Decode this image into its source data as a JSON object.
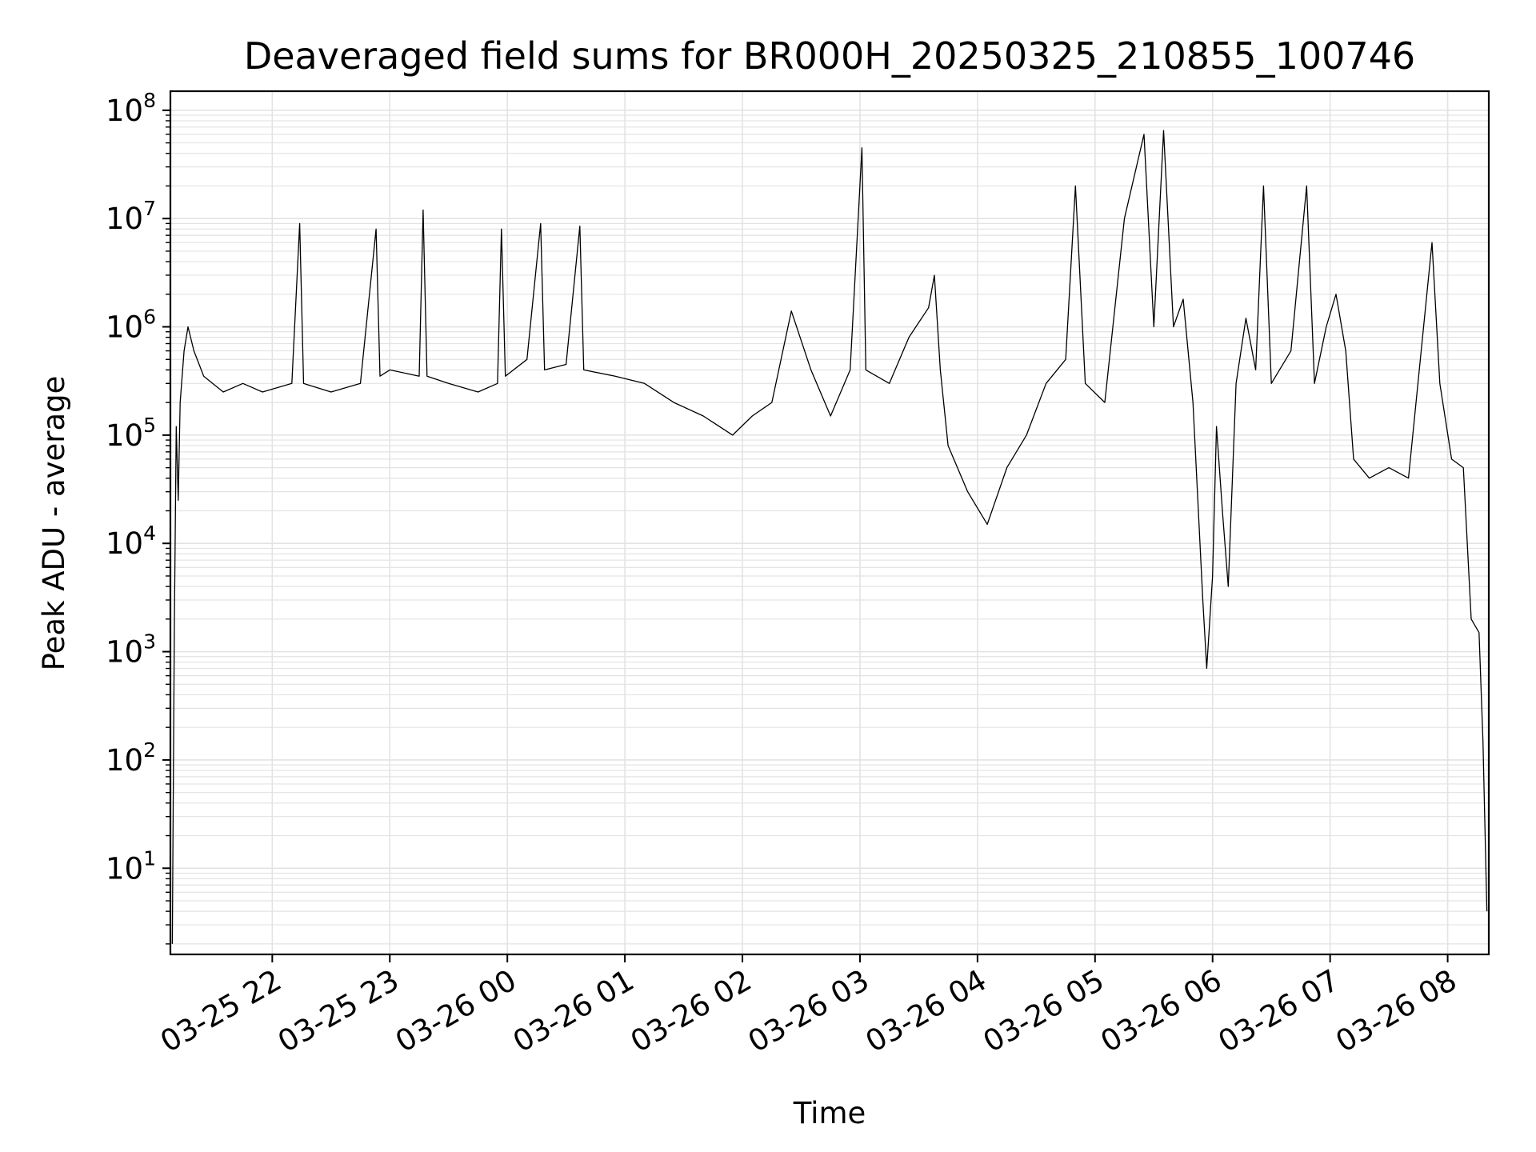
{
  "chart_data": {
    "type": "line",
    "title": "Deaveraged field sums for BR000H_20250325_210855_100746",
    "xlabel": "Time",
    "ylabel": "Peak ADU - average",
    "y_scale": "log",
    "ylim": [
      1.6,
      150000000
    ],
    "xlim": [
      "2025-03-25 21:08",
      "2025-03-26 08:21"
    ],
    "grid": true,
    "colors": {
      "line": "#000000",
      "grid": "#e3e3e3",
      "axes": "#000000"
    },
    "x_ticks": [
      {
        "label": "03-25 22",
        "t": "2025-03-25 22:00"
      },
      {
        "label": "03-25 23",
        "t": "2025-03-25 23:00"
      },
      {
        "label": "03-26 00",
        "t": "2025-03-26 00:00"
      },
      {
        "label": "03-26 01",
        "t": "2025-03-26 01:00"
      },
      {
        "label": "03-26 02",
        "t": "2025-03-26 02:00"
      },
      {
        "label": "03-26 03",
        "t": "2025-03-26 03:00"
      },
      {
        "label": "03-26 04",
        "t": "2025-03-26 04:00"
      },
      {
        "label": "03-26 05",
        "t": "2025-03-26 05:00"
      },
      {
        "label": "03-26 06",
        "t": "2025-03-26 06:00"
      },
      {
        "label": "03-26 07",
        "t": "2025-03-26 07:00"
      },
      {
        "label": "03-26 08",
        "t": "2025-03-26 08:00"
      }
    ],
    "y_ticks": [
      {
        "base": "10",
        "exp": "1",
        "value": 10
      },
      {
        "base": "10",
        "exp": "2",
        "value": 100
      },
      {
        "base": "10",
        "exp": "3",
        "value": 1000
      },
      {
        "base": "10",
        "exp": "4",
        "value": 10000
      },
      {
        "base": "10",
        "exp": "5",
        "value": 100000
      },
      {
        "base": "10",
        "exp": "6",
        "value": 1000000
      },
      {
        "base": "10",
        "exp": "7",
        "value": 10000000
      },
      {
        "base": "10",
        "exp": "8",
        "value": 100000000
      }
    ],
    "series": [
      {
        "points": [
          [
            "2025-03-25 21:09",
            2
          ],
          [
            "2025-03-25 21:10",
            1600
          ],
          [
            "2025-03-25 21:11",
            120000
          ],
          [
            "2025-03-25 21:12",
            25000
          ],
          [
            "2025-03-25 21:13",
            200000
          ],
          [
            "2025-03-25 21:15",
            600000
          ],
          [
            "2025-03-25 21:17",
            1000000
          ],
          [
            "2025-03-25 21:20",
            600000
          ],
          [
            "2025-03-25 21:25",
            350000
          ],
          [
            "2025-03-25 21:35",
            250000
          ],
          [
            "2025-03-25 21:45",
            300000
          ],
          [
            "2025-03-25 21:55",
            250000
          ],
          [
            "2025-03-25 22:10",
            300000
          ],
          [
            "2025-03-25 22:14",
            9000000
          ],
          [
            "2025-03-25 22:16",
            300000
          ],
          [
            "2025-03-25 22:30",
            250000
          ],
          [
            "2025-03-25 22:45",
            300000
          ],
          [
            "2025-03-25 22:53",
            8000000
          ],
          [
            "2025-03-25 22:55",
            350000
          ],
          [
            "2025-03-25 23:00",
            400000
          ],
          [
            "2025-03-25 23:15",
            350000
          ],
          [
            "2025-03-25 23:17",
            12000000
          ],
          [
            "2025-03-25 23:19",
            350000
          ],
          [
            "2025-03-25 23:30",
            300000
          ],
          [
            "2025-03-25 23:45",
            250000
          ],
          [
            "2025-03-25 23:55",
            300000
          ],
          [
            "2025-03-25 23:57",
            8000000
          ],
          [
            "2025-03-25 23:59",
            350000
          ],
          [
            "2025-03-26 00:10",
            500000
          ],
          [
            "2025-03-26 00:17",
            9000000
          ],
          [
            "2025-03-26 00:19",
            400000
          ],
          [
            "2025-03-26 00:30",
            450000
          ],
          [
            "2025-03-26 00:37",
            8500000
          ],
          [
            "2025-03-26 00:39",
            400000
          ],
          [
            "2025-03-26 00:55",
            350000
          ],
          [
            "2025-03-26 01:10",
            300000
          ],
          [
            "2025-03-26 01:25",
            200000
          ],
          [
            "2025-03-26 01:40",
            150000
          ],
          [
            "2025-03-26 01:55",
            100000
          ],
          [
            "2025-03-26 02:05",
            150000
          ],
          [
            "2025-03-26 02:15",
            200000
          ],
          [
            "2025-03-26 02:25",
            1400000
          ],
          [
            "2025-03-26 02:35",
            400000
          ],
          [
            "2025-03-26 02:45",
            150000
          ],
          [
            "2025-03-26 02:55",
            400000
          ],
          [
            "2025-03-26 03:01",
            45000000
          ],
          [
            "2025-03-26 03:03",
            400000
          ],
          [
            "2025-03-26 03:15",
            300000
          ],
          [
            "2025-03-26 03:25",
            800000
          ],
          [
            "2025-03-26 03:35",
            1500000
          ],
          [
            "2025-03-26 03:38",
            3000000
          ],
          [
            "2025-03-26 03:41",
            400000
          ],
          [
            "2025-03-26 03:45",
            80000
          ],
          [
            "2025-03-26 03:55",
            30000
          ],
          [
            "2025-03-26 04:05",
            15000
          ],
          [
            "2025-03-26 04:15",
            50000
          ],
          [
            "2025-03-26 04:25",
            100000
          ],
          [
            "2025-03-26 04:35",
            300000
          ],
          [
            "2025-03-26 04:45",
            500000
          ],
          [
            "2025-03-26 04:50",
            20000000
          ],
          [
            "2025-03-26 04:55",
            300000
          ],
          [
            "2025-03-26 05:05",
            200000
          ],
          [
            "2025-03-26 05:15",
            10000000
          ],
          [
            "2025-03-26 05:25",
            60000000
          ],
          [
            "2025-03-26 05:30",
            1000000
          ],
          [
            "2025-03-26 05:35",
            65000000
          ],
          [
            "2025-03-26 05:40",
            1000000
          ],
          [
            "2025-03-26 05:45",
            1800000
          ],
          [
            "2025-03-26 05:50",
            200000
          ],
          [
            "2025-03-26 05:55",
            3000
          ],
          [
            "2025-03-26 05:57",
            700
          ],
          [
            "2025-03-26 06:00",
            5000
          ],
          [
            "2025-03-26 06:02",
            120000
          ],
          [
            "2025-03-26 06:05",
            20000
          ],
          [
            "2025-03-26 06:08",
            4000
          ],
          [
            "2025-03-26 06:12",
            300000
          ],
          [
            "2025-03-26 06:17",
            1200000
          ],
          [
            "2025-03-26 06:22",
            400000
          ],
          [
            "2025-03-26 06:26",
            20000000
          ],
          [
            "2025-03-26 06:30",
            300000
          ],
          [
            "2025-03-26 06:40",
            600000
          ],
          [
            "2025-03-26 06:48",
            20000000
          ],
          [
            "2025-03-26 06:52",
            300000
          ],
          [
            "2025-03-26 06:58",
            1000000
          ],
          [
            "2025-03-26 07:03",
            2000000
          ],
          [
            "2025-03-26 07:08",
            600000
          ],
          [
            "2025-03-26 07:12",
            60000
          ],
          [
            "2025-03-26 07:20",
            40000
          ],
          [
            "2025-03-26 07:30",
            50000
          ],
          [
            "2025-03-26 07:40",
            40000
          ],
          [
            "2025-03-26 07:52",
            6000000
          ],
          [
            "2025-03-26 07:56",
            300000
          ],
          [
            "2025-03-26 08:02",
            60000
          ],
          [
            "2025-03-26 08:08",
            50000
          ],
          [
            "2025-03-26 08:12",
            2000
          ],
          [
            "2025-03-26 08:16",
            1500
          ],
          [
            "2025-03-26 08:18",
            150
          ],
          [
            "2025-03-26 08:20",
            4
          ]
        ]
      }
    ]
  }
}
